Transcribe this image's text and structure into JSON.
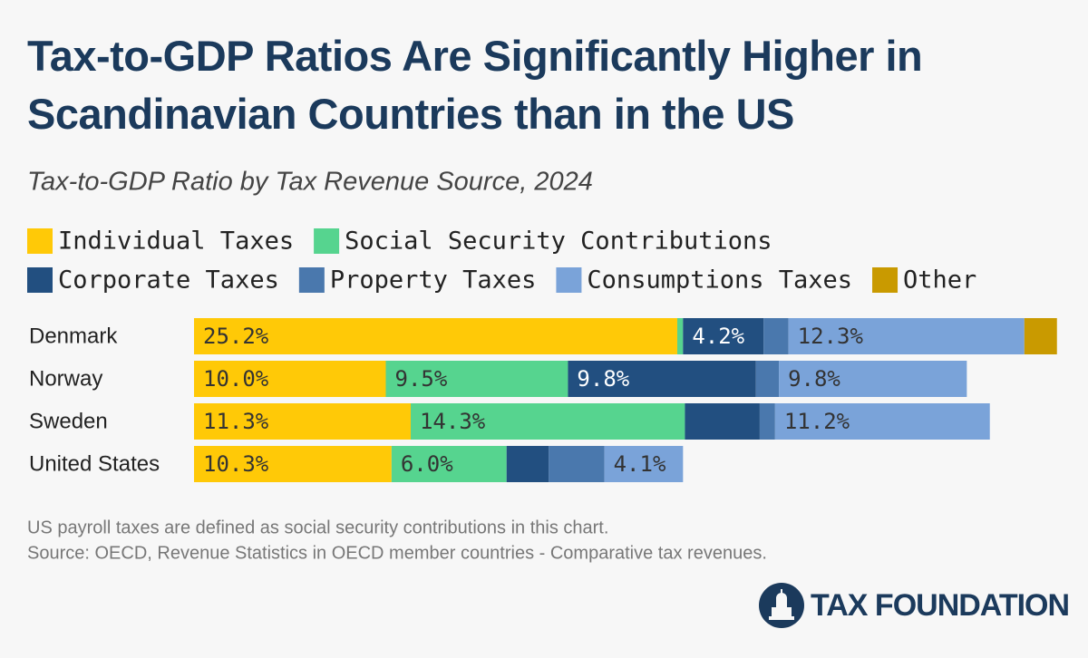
{
  "chart_data": {
    "type": "stacked-bar",
    "title": "Tax-to-GDP Ratios Are Significantly Higher in Scandinavian Countries than in the US",
    "subtitle": "Tax-to-GDP Ratio by Tax Revenue Source, 2024",
    "categories": [
      "Denmark",
      "Norway",
      "Sweden",
      "United States"
    ],
    "series": [
      {
        "name": "Individual Taxes",
        "color": "#ffc907",
        "values": [
          25.2,
          10.0,
          11.3,
          10.3
        ],
        "value_labels": [
          "25.2%",
          "10.0%",
          "11.3%",
          "10.3%"
        ]
      },
      {
        "name": "Social Security Contributions",
        "color": "#56d48f",
        "values": [
          0.3,
          9.5,
          14.3,
          6.0
        ],
        "value_labels": [
          null,
          "9.5%",
          "14.3%",
          "6.0%"
        ]
      },
      {
        "name": "Corporate Taxes",
        "color": "#224f80",
        "values": [
          4.2,
          9.8,
          3.9,
          2.2
        ],
        "value_labels": [
          "4.2%",
          "9.8%",
          null,
          null
        ]
      },
      {
        "name": "Property Taxes",
        "color": "#4a78ad",
        "values": [
          1.3,
          1.2,
          0.8,
          2.9
        ],
        "value_labels": [
          null,
          null,
          null,
          null
        ]
      },
      {
        "name": "Consumptions Taxes",
        "color": "#7aa3d9",
        "values": [
          12.3,
          9.8,
          11.2,
          4.1
        ],
        "value_labels": [
          "12.3%",
          "9.8%",
          "11.2%",
          "4.1%"
        ]
      },
      {
        "name": "Other",
        "color": "#c99a00",
        "values": [
          1.7,
          0,
          0,
          0
        ],
        "value_labels": [
          null,
          null,
          null,
          null
        ]
      }
    ],
    "notes": [
      "US payroll taxes are defined as social security contributions in this chart.",
      "Source: OECD, Revenue Statistics in OECD member countries - Comparative tax revenues."
    ],
    "logo": "TAX FOUNDATION"
  }
}
